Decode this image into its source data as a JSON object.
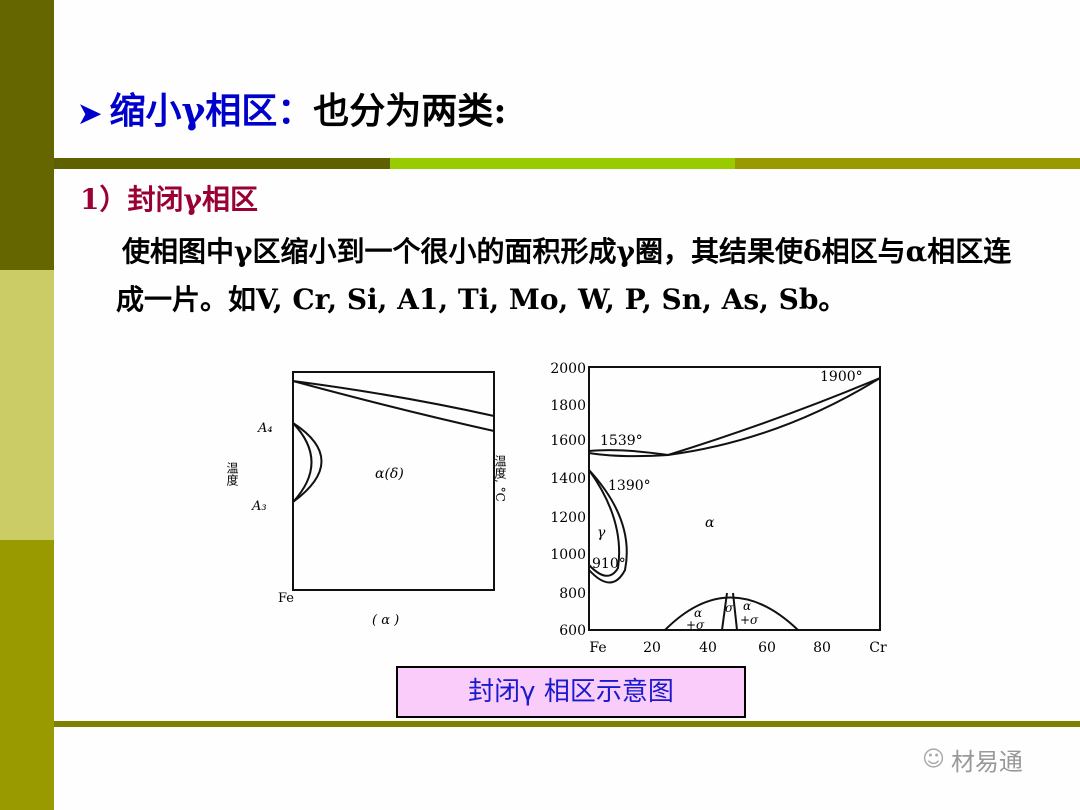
{
  "title": {
    "bullet_icon": "arrow-bullet-icon",
    "highlight": "缩小γ相区：",
    "rest": "也分为两类:"
  },
  "subtitle": "1）封闭γ相区",
  "body": [
    "使相图中γ区缩小到一个很小的面积形成γ圈，其结果使δ相区与α相区连成一片。如V, Cr, Si, A1, Ti, Mo, W, P, Sn, As, Sb。"
  ],
  "diagram_a": {
    "label_a4": "A₄",
    "label_a3": "A₃",
    "ylabel": "温度",
    "region": "α(δ)",
    "xlabel": "Fe",
    "caption": "( α )"
  },
  "diagram_b": {
    "yticks": [
      "2000",
      "1800",
      "1600",
      "1400",
      "1200",
      "1000",
      "800",
      "600"
    ],
    "xticks": [
      "Fe",
      "20",
      "40",
      "60",
      "80",
      "Cr"
    ],
    "ylabel": "温度, °C",
    "annotations": {
      "t1900": "1900°",
      "t1539": "1539°",
      "t1390": "1390°",
      "t910": "910°",
      "gamma": "γ",
      "alpha": "α",
      "alpha_sigma_l1": "α",
      "alpha_sigma_l2": "+σ",
      "sigma": "σ",
      "alpha_sigma_r1": "α",
      "alpha_sigma_r2": "+σ"
    }
  },
  "caption": "封闭γ 相区示意图",
  "watermark": {
    "icon": "wechat-icon",
    "text": "材易通"
  },
  "colors": {
    "sidebar_top": "#666600",
    "sidebar_mid": "#cccc66",
    "sidebar_bottom": "#999900",
    "title_blue": "#0000cc",
    "subtitle": "#990033",
    "caption_bg": "#f9ccf9"
  }
}
